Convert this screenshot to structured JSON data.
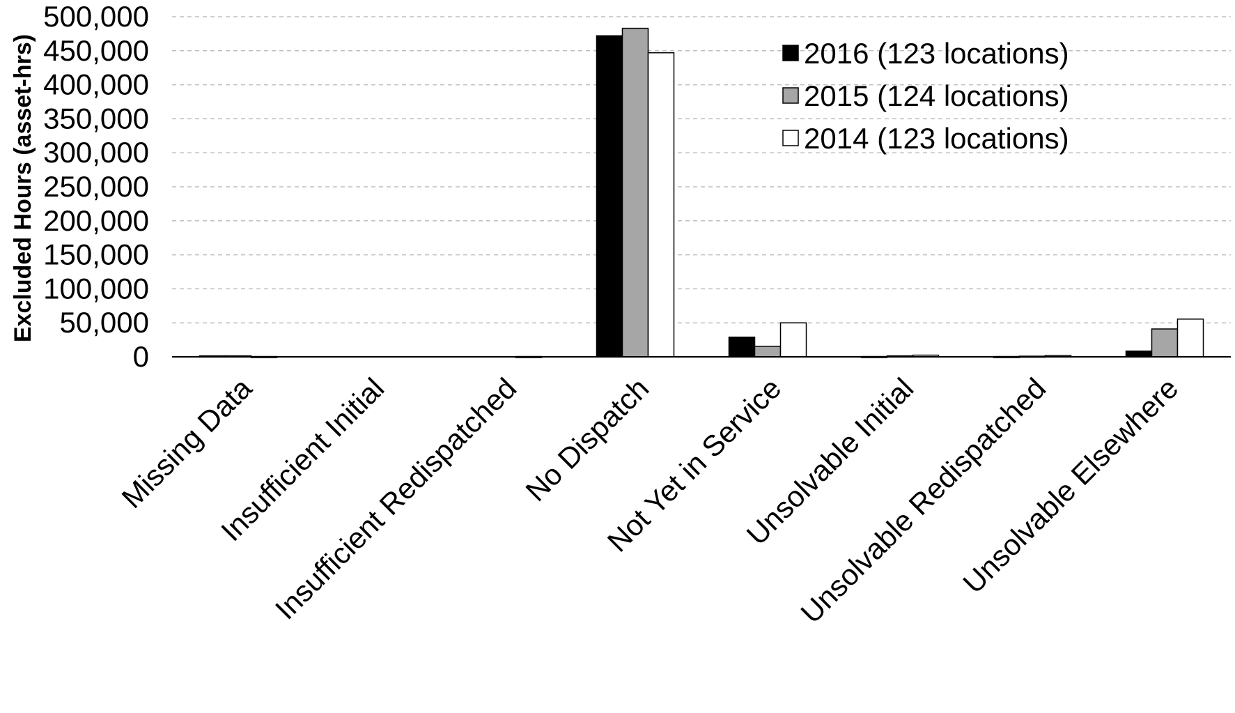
{
  "chart_data": {
    "type": "bar",
    "title": "",
    "xlabel": "",
    "ylabel": "Excluded Hours (asset-hrs)",
    "ylim": [
      0,
      500000
    ],
    "yticks": [
      0,
      50000,
      100000,
      150000,
      200000,
      250000,
      300000,
      350000,
      400000,
      450000,
      500000
    ],
    "ytick_labels": [
      "0",
      "50,000",
      "100,000",
      "150,000",
      "200,000",
      "250,000",
      "300,000",
      "350,000",
      "400,000",
      "450,000",
      "500,000"
    ],
    "grid": true,
    "legend_position": "top-right",
    "categories": [
      "Missing Data",
      "Insufficient Initial",
      "Insufficient Redispatched",
      "No Dispatch",
      "Not Yet in Service",
      "Unsolvable Initial",
      "Unsolvable Redispatched",
      "Unsolvable Elsewhere"
    ],
    "series": [
      {
        "name": "2016 (123 locations)",
        "color": "#000000",
        "values": [
          1500,
          0,
          0,
          472000,
          29000,
          500,
          500,
          8500
        ]
      },
      {
        "name": "2015 (124 locations)",
        "color": "#a6a6a6",
        "values": [
          1500,
          0,
          0,
          483000,
          15500,
          1500,
          1000,
          41000
        ]
      },
      {
        "name": "2014 (123 locations)",
        "color": "#ffffff",
        "values": [
          500,
          0,
          500,
          447000,
          50000,
          2500,
          2000,
          55500
        ]
      }
    ]
  }
}
